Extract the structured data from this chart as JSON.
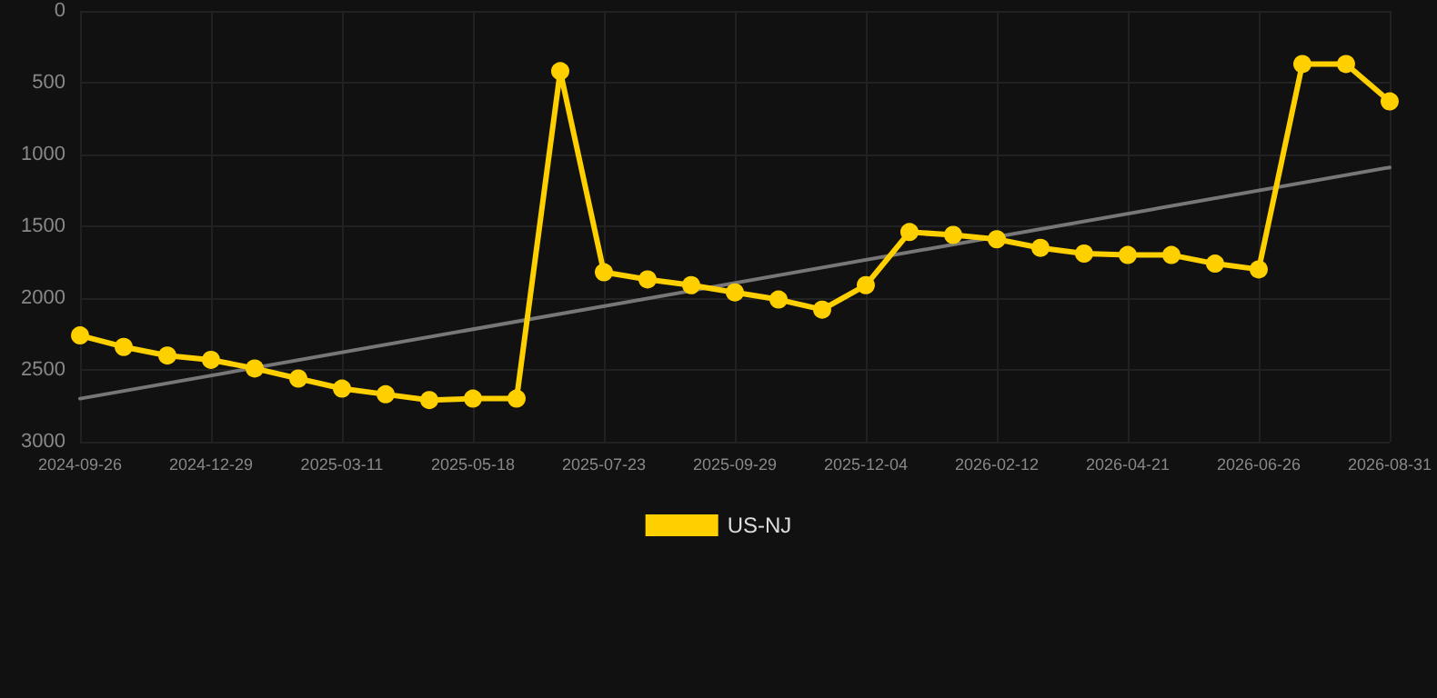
{
  "chart_data": {
    "type": "line",
    "categories": [
      "2024-09-26",
      null,
      null,
      "2024-12-29",
      null,
      null,
      "2025-03-11",
      null,
      null,
      "2025-05-18",
      null,
      null,
      "2025-07-23",
      null,
      null,
      "2025-09-29",
      null,
      null,
      "2025-12-04",
      null,
      null,
      "2026-02-12",
      null,
      null,
      "2026-04-21",
      null,
      null,
      "2026-06-26",
      null,
      null,
      "2026-08-31"
    ],
    "series": [
      {
        "name": "US-NJ",
        "color": "#ffd000",
        "marker": "circle",
        "values": [
          2260,
          2340,
          2400,
          2430,
          2490,
          2560,
          2630,
          2670,
          2710,
          2700,
          2700,
          420,
          1820,
          1870,
          1910,
          1960,
          2010,
          2080,
          1910,
          1540,
          1560,
          1590,
          1650,
          1690,
          1700,
          1700,
          1760,
          1800,
          370,
          370,
          630
        ]
      },
      {
        "color": "#777777",
        "marker": "none",
        "values": [
          2700,
          null,
          null,
          null,
          null,
          null,
          null,
          null,
          null,
          null,
          null,
          null,
          null,
          null,
          null,
          null,
          null,
          null,
          null,
          null,
          null,
          null,
          null,
          null,
          null,
          null,
          null,
          null,
          null,
          null,
          1090
        ]
      }
    ],
    "ylim": [
      3000,
      0
    ],
    "yticks": [
      0,
      500,
      1000,
      1500,
      2000,
      2500,
      3000
    ],
    "grid": true,
    "legend": "bottom"
  }
}
